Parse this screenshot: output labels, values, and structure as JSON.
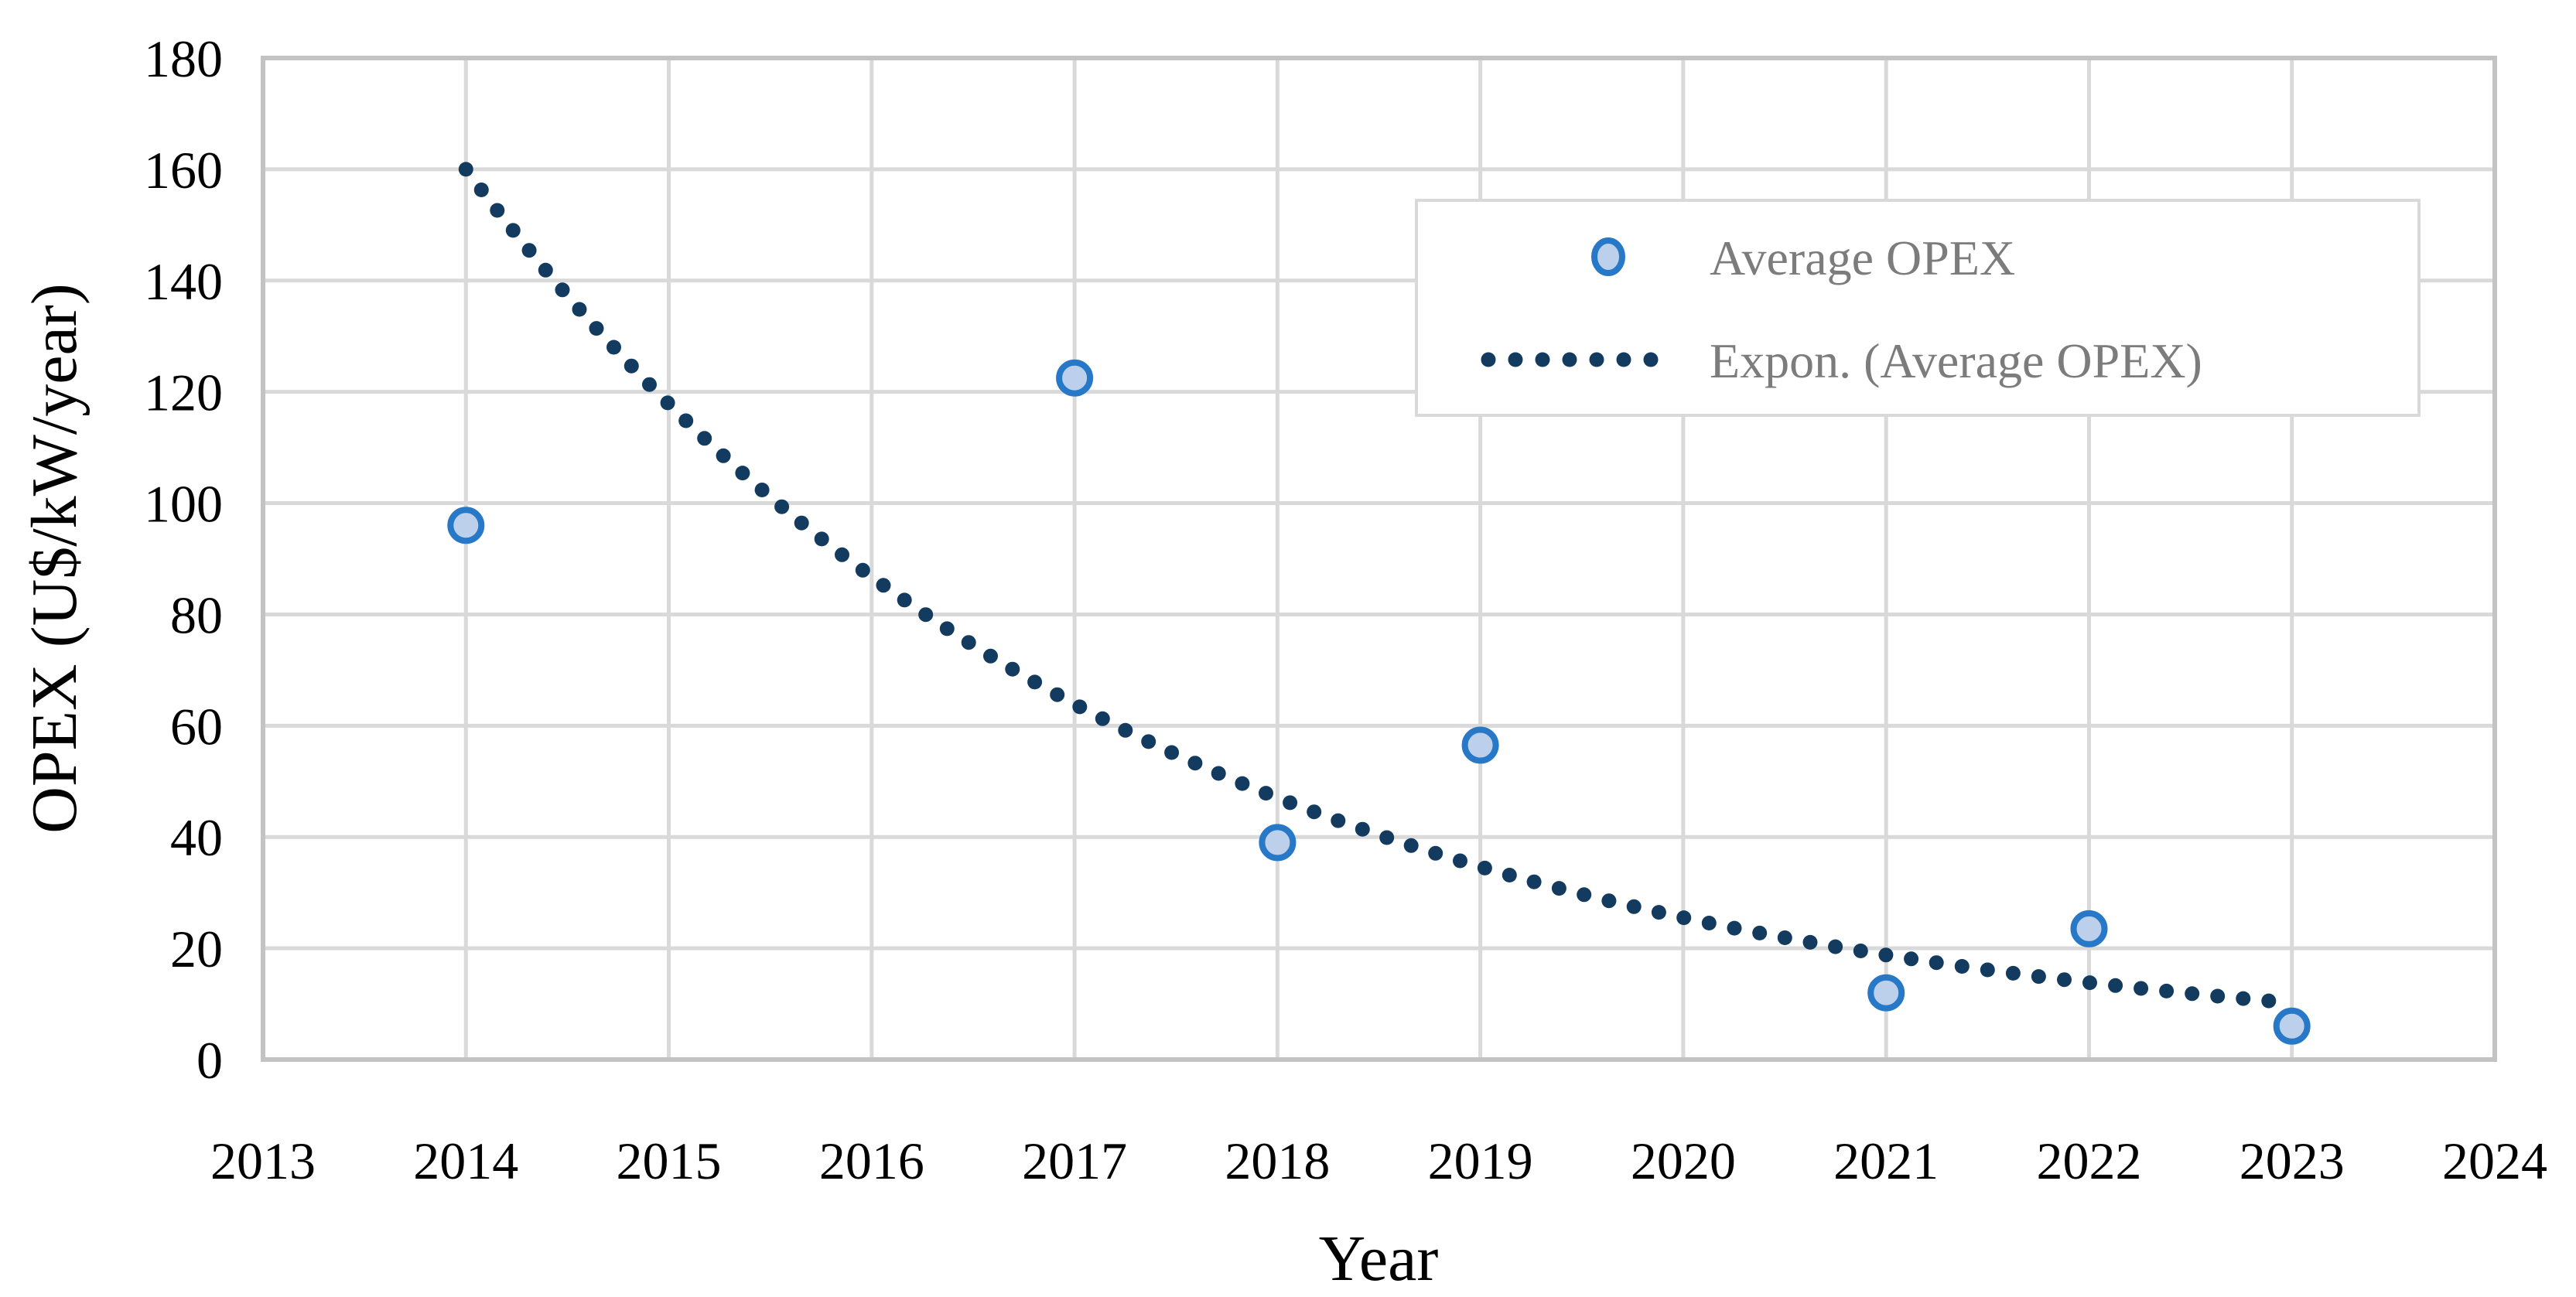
{
  "figure": {
    "background": "#ffffff",
    "x_axis": {
      "title": "Year"
    },
    "y_axis": {
      "title": "OPEX (U$/kW/year)"
    },
    "legend": {
      "items": [
        {
          "label": "Average OPEX",
          "marker": "circle"
        },
        {
          "label": "Expon. (Average OPEX)",
          "marker": "dotted-line"
        }
      ]
    },
    "colors": {
      "marker_fill": "#BDD0EB",
      "marker_stroke": "#2878C8",
      "trendline": "#133B5F",
      "gridline": "#D9D9D9",
      "plot_border": "#C3C3C3",
      "legend_border": "#D9D9D9",
      "legend_text": "#7C7C7C",
      "axis_text": "#000000"
    }
  },
  "chart_data": {
    "type": "scatter",
    "title": "",
    "xlabel": "Year",
    "ylabel": "OPEX (U$/kW/year)",
    "xlim": [
      2013,
      2024
    ],
    "ylim": [
      0,
      180
    ],
    "x_ticks": [
      2013,
      2014,
      2015,
      2016,
      2017,
      2018,
      2019,
      2020,
      2021,
      2022,
      2023,
      2024
    ],
    "y_ticks": [
      0,
      20,
      40,
      60,
      80,
      100,
      120,
      140,
      160,
      180
    ],
    "grid": true,
    "legend_position": "upper-right-inside",
    "series": [
      {
        "name": "Average OPEX",
        "type": "scatter",
        "x": [
          2014,
          2017,
          2018,
          2019,
          2021,
          2022,
          2023
        ],
        "y": [
          96,
          122.5,
          39,
          56.5,
          12,
          23.5,
          6
        ]
      },
      {
        "name": "Expon. (Average OPEX)",
        "type": "trendline-exponential",
        "line_style": "dotted",
        "model": {
          "a": 160,
          "b": -0.306,
          "x0": 2014
        },
        "x_start": 2014,
        "x_end": 2023,
        "y_samples": {
          "2014": 160,
          "2015": 117.8,
          "2016": 86.8,
          "2017": 63.9,
          "2018": 47.1,
          "2019": 34.7,
          "2020": 25.5,
          "2021": 18.8,
          "2022": 13.8,
          "2023": 10.2
        }
      }
    ]
  }
}
